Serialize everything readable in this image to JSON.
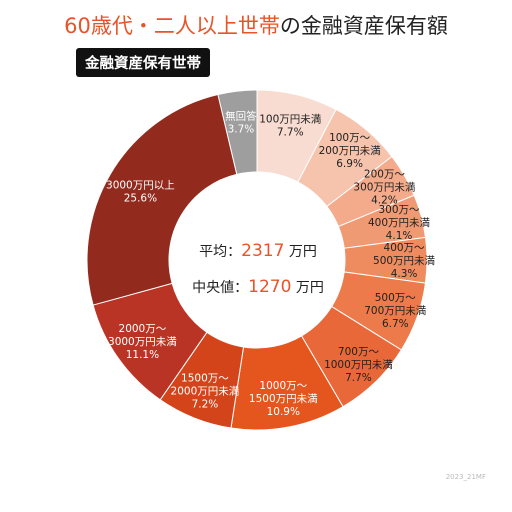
{
  "title": {
    "accent": "60歳代・二人以上世帯",
    "rest": "の金融資産保有額"
  },
  "badge": "金融資産保有世帯",
  "center": {
    "avg_label": "平均：",
    "avg_value": "2317",
    "avg_unit": "万円",
    "median_label": "中央値：",
    "median_value": "1270",
    "median_unit": "万円"
  },
  "footnote": "2023_21MF",
  "chart_data": {
    "type": "pie",
    "donut": true,
    "categories": [
      "無回答",
      "100万円未満",
      "100万～200万円未満",
      "200万～300万円未満",
      "300万～400万円未満",
      "400万～500万円未満",
      "500万～700万円未満",
      "700万～1000万円未満",
      "1000万～1500万円未満",
      "1500万～2000万円未満",
      "2000万～3000万円未満",
      "3000万円以上"
    ],
    "values": [
      3.7,
      7.7,
      6.9,
      4.2,
      4.1,
      4.3,
      6.7,
      7.7,
      10.9,
      7.2,
      11.1,
      25.6
    ],
    "labels": [
      [
        "無回答",
        "3.7%"
      ],
      [
        "100万円未満",
        "7.7%"
      ],
      [
        "100万～",
        "200万円未満",
        "6.9%"
      ],
      [
        "200万～",
        "300万円未満",
        "4.2%"
      ],
      [
        "300万～",
        "400万円未満",
        "4.1%"
      ],
      [
        "400万～",
        "500万円未満",
        "4.3%"
      ],
      [
        "500万～",
        "700万円未満",
        "6.7%"
      ],
      [
        "700万～",
        "1000万円未満",
        "7.7%"
      ],
      [
        "1000万～",
        "1500万円未満",
        "10.9%"
      ],
      [
        "1500万～",
        "2000万円未満",
        "7.2%"
      ],
      [
        "2000万～",
        "3000万円未満",
        "11.1%"
      ],
      [
        "3000万円以上",
        "25.6%"
      ]
    ],
    "colors": [
      "#9e9e9e",
      "#f9dcd1",
      "#f6c3ad",
      "#f3ab8c",
      "#f09a74",
      "#ee8b5f",
      "#ec7a4a",
      "#e9683a",
      "#e5561f",
      "#d3441a",
      "#b93424",
      "#932a1e"
    ],
    "label_colors": [
      "#ffffff",
      "#222222",
      "#222222",
      "#222222",
      "#222222",
      "#222222",
      "#222222",
      "#222222",
      "#ffffff",
      "#ffffff",
      "#ffffff",
      "#ffffff"
    ]
  }
}
